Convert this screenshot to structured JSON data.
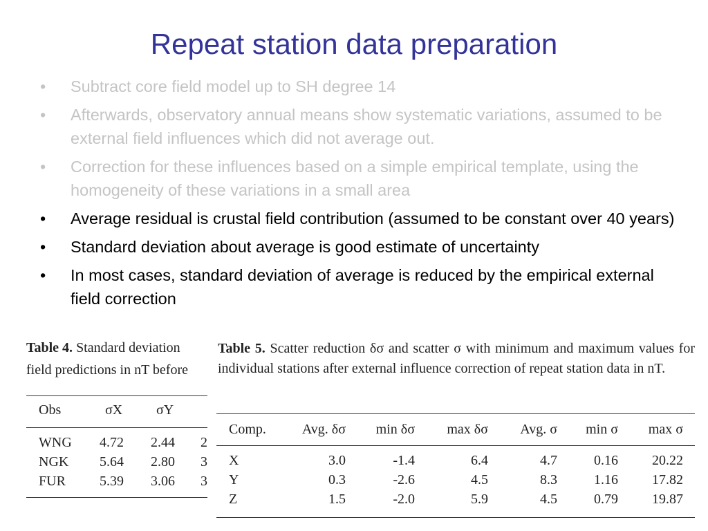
{
  "title": "Repeat station data preparation",
  "bullets": [
    {
      "text": "Subtract core field model up to SH degree 14",
      "faded": true
    },
    {
      "text": "Afterwards, observatory annual means show systematic variations, assumed to be external field influences which did not average out.",
      "faded": true
    },
    {
      "text": "Correction for these influences based on a simple empirical template, using the homogeneity of these variations in a small area",
      "faded": true
    },
    {
      "text": "Average residual is crustal field contribution (assumed to be constant over 40 years)",
      "faded": false
    },
    {
      "text": "Standard deviation about average is good estimate of uncertainty",
      "faded": false
    },
    {
      "text": "In most cases, standard deviation of average is reduced by the empirical external field correction",
      "faded": false
    }
  ],
  "table4": {
    "caption_bold": "Table 4.",
    "caption_line1": "Standard deviation",
    "caption_line2": "field predictions in nT before",
    "headers": [
      "Obs",
      "σX",
      "σY",
      ""
    ],
    "rows": [
      [
        "WNG",
        "4.72",
        "2.44",
        "2"
      ],
      [
        "NGK",
        "5.64",
        "2.80",
        "3"
      ],
      [
        "FUR",
        "5.39",
        "3.06",
        "3"
      ]
    ]
  },
  "table5": {
    "caption_bold": "Table 5.",
    "caption_text": "Scatter reduction δσ and scatter σ with minimum and maximum values for individual stations after external influence correction of repeat station data in nT.",
    "headers": [
      "Comp.",
      "Avg. δσ",
      "min δσ",
      "max δσ",
      "Avg. σ",
      "min σ",
      "max σ"
    ],
    "rows": [
      [
        "X",
        "3.0",
        "-1.4",
        "6.4",
        "4.7",
        "0.16",
        "20.22"
      ],
      [
        "Y",
        "0.3",
        "-2.6",
        "4.5",
        "8.3",
        "1.16",
        "17.82"
      ],
      [
        "Z",
        "1.5",
        "-2.0",
        "5.9",
        "4.5",
        "0.79",
        "19.87"
      ]
    ]
  }
}
